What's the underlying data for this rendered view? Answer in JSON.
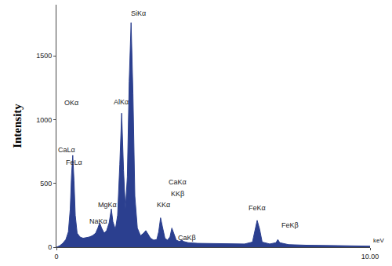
{
  "chart_data": {
    "type": "area",
    "xlabel": "keV",
    "ylabel": "Intensity",
    "color": "#2b3f8f",
    "grid": false,
    "x": [
      0.0,
      0.1,
      0.2,
      0.3,
      0.38,
      0.44,
      0.48,
      0.52,
      0.56,
      0.6,
      0.66,
      0.75,
      0.85,
      0.95,
      1.05,
      1.15,
      1.25,
      1.32,
      1.38,
      1.44,
      1.52,
      1.6,
      1.68,
      1.75,
      1.8,
      1.88,
      1.95,
      2.02,
      2.08,
      2.14,
      2.2,
      2.26,
      2.32,
      2.38,
      2.44,
      2.5,
      2.58,
      2.68,
      2.78,
      2.85,
      2.92,
      3.0,
      3.1,
      3.2,
      3.26,
      3.32,
      3.38,
      3.46,
      3.54,
      3.62,
      3.68,
      3.74,
      3.82,
      3.92,
      4.0,
      4.05,
      4.2,
      4.5,
      5.0,
      5.5,
      6.0,
      6.25,
      6.32,
      6.4,
      6.48,
      6.56,
      6.8,
      7.0,
      7.06,
      7.12,
      7.4,
      8.0,
      9.0,
      10.0
    ],
    "values": [
      0,
      10,
      30,
      60,
      120,
      300,
      560,
      720,
      520,
      250,
      110,
      80,
      70,
      75,
      80,
      90,
      110,
      150,
      190,
      150,
      110,
      130,
      190,
      300,
      200,
      140,
      250,
      650,
      1050,
      600,
      300,
      550,
      1300,
      1760,
      1200,
      400,
      150,
      90,
      110,
      130,
      100,
      70,
      55,
      60,
      120,
      230,
      160,
      70,
      55,
      80,
      150,
      110,
      55,
      45,
      55,
      45,
      35,
      30,
      28,
      25,
      25,
      40,
      120,
      210,
      140,
      40,
      25,
      35,
      60,
      35,
      20,
      15,
      12,
      8
    ],
    "xlim": [
      0,
      10
    ],
    "xticks": [
      0,
      {
        "value": 10,
        "label": "10.00"
      }
    ],
    "ylim": [
      0,
      1900
    ],
    "yticks": [
      0,
      500,
      1000,
      1500
    ],
    "annotations": [
      {
        "text": "OKα",
        "x": 0.47,
        "y": 1130
      },
      {
        "text": "CaLα",
        "x": 0.33,
        "y": 760
      },
      {
        "text": "FeLα",
        "x": 0.55,
        "y": 665
      },
      {
        "text": "NaKα",
        "x": 1.33,
        "y": 200
      },
      {
        "text": "MgKα",
        "x": 1.62,
        "y": 330
      },
      {
        "text": "AlKα",
        "x": 2.05,
        "y": 1140
      },
      {
        "text": "SiKα",
        "x": 2.6,
        "y": 1830
      },
      {
        "text": "KKα",
        "x": 3.4,
        "y": 330
      },
      {
        "text": "KKβ",
        "x": 3.85,
        "y": 420
      },
      {
        "text": "CaKα",
        "x": 3.85,
        "y": 510
      },
      {
        "text": "CaKβ",
        "x": 4.15,
        "y": 75
      },
      {
        "text": "FeKα",
        "x": 6.4,
        "y": 310
      },
      {
        "text": "FeKβ",
        "x": 7.45,
        "y": 170
      }
    ]
  }
}
